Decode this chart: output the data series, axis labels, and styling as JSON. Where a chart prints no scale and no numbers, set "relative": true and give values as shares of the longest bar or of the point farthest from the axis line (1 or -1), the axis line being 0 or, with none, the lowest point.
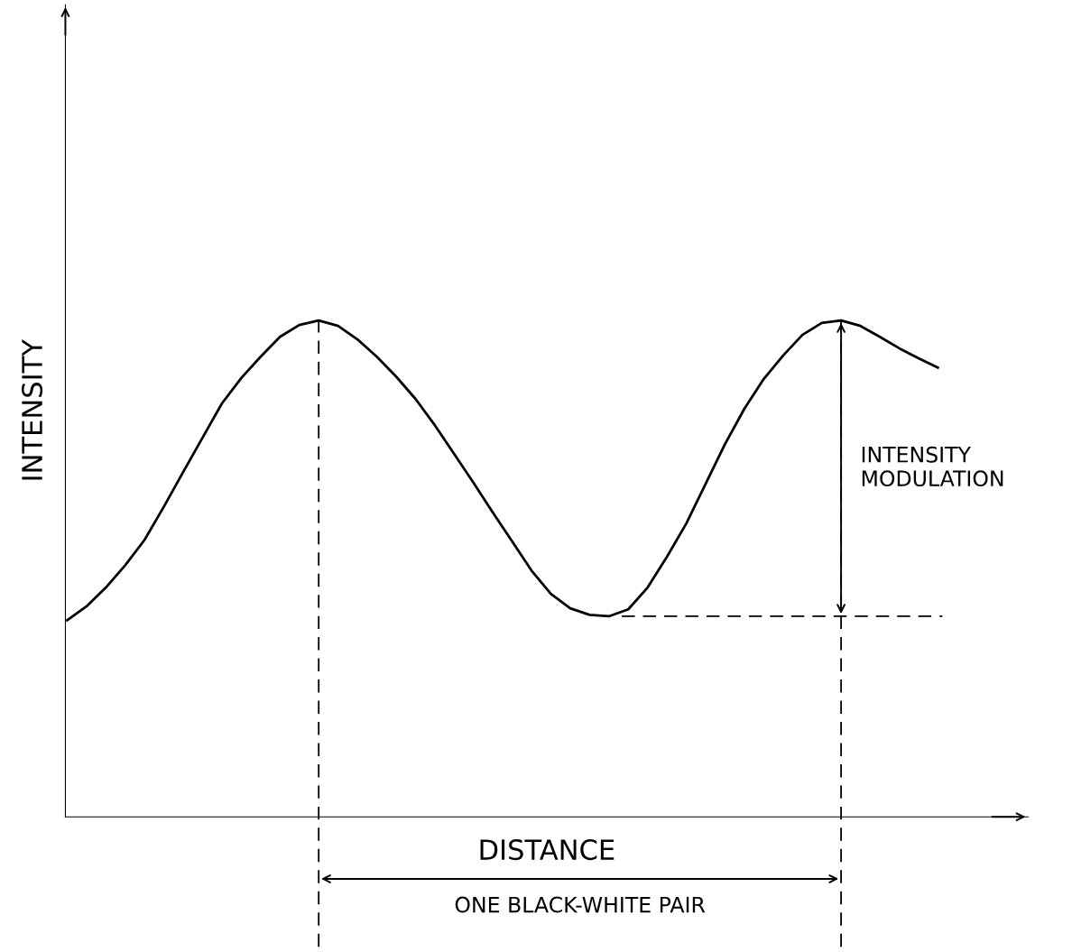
{
  "chart_data": {
    "type": "line",
    "relative": true,
    "xlabel": "DISTANCE",
    "ylabel": "INTENSITY",
    "categories": [
      null,
      null,
      null,
      null,
      null,
      null,
      null,
      null,
      null,
      null,
      null,
      null,
      null,
      null,
      null,
      null,
      null,
      null,
      null,
      null,
      null,
      null,
      null,
      null,
      null,
      null,
      null,
      null,
      null,
      null,
      null,
      null,
      null,
      null,
      null,
      null,
      null,
      null,
      null,
      null,
      null,
      null,
      null,
      null,
      null,
      null
    ],
    "series": [
      {
        "color": "#000000",
        "values": [
          0.396,
          0.424,
          0.462,
          0.507,
          0.558,
          0.625,
          0.695,
          0.764,
          0.833,
          0.884,
          0.927,
          0.967,
          0.991,
          1,
          0.989,
          0.962,
          0.927,
          0.887,
          0.842,
          0.789,
          0.731,
          0.673,
          0.613,
          0.555,
          0.496,
          0.449,
          0.42,
          0.407,
          0.404,
          0.418,
          0.462,
          0.524,
          0.591,
          0.671,
          0.751,
          0.822,
          0.882,
          0.929,
          0.971,
          0.995,
          1,
          0.989,
          0.967,
          0.944,
          0.924,
          0.905
        ]
      }
    ],
    "ref_lines": [
      {
        "axis": "y",
        "value": 0.404,
        "color": "#000000",
        "line_style": "dashed"
      }
    ],
    "annotations": [
      "INTENSITY\nMODULATION",
      "ONE BLACK-WHITE PAIR"
    ],
    "legend": false,
    "marker": "none",
    "line_style": "solid"
  }
}
